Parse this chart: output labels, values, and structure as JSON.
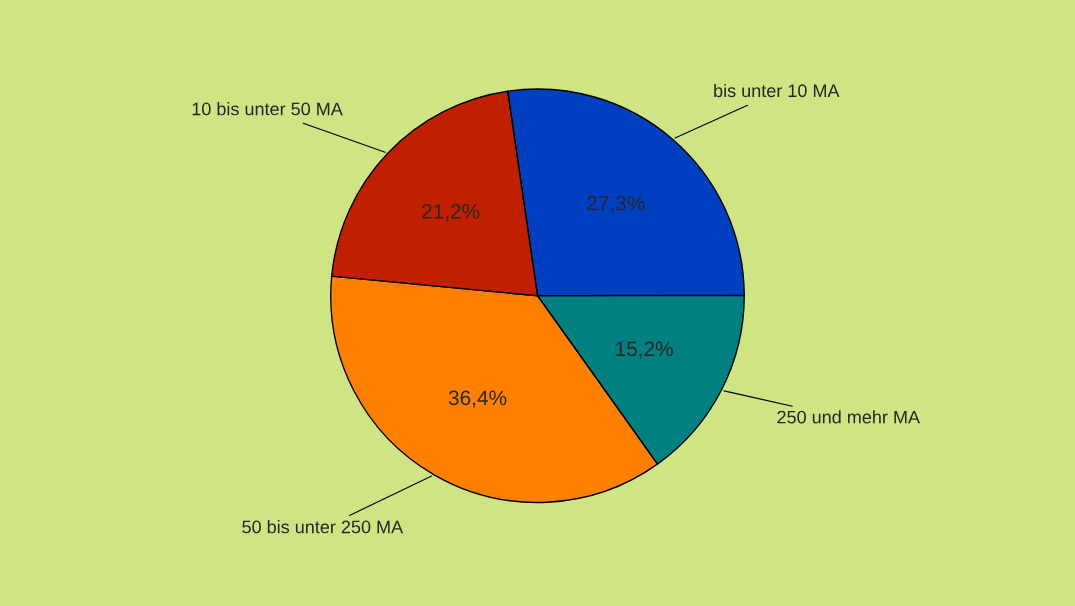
{
  "chart_data": {
    "type": "pie",
    "categories": [
      "bis unter 10 MA",
      "250 und mehr MA",
      "50 bis unter 250 MA",
      "10 bis unter 50 MA"
    ],
    "values": [
      27.3,
      15.2,
      36.4,
      21.2
    ],
    "colors": [
      "#0040c0",
      "#008080",
      "#ff8000",
      "#c02000"
    ],
    "value_labels": [
      "27,3%",
      "15,2%",
      "36,4%",
      "21,2%"
    ]
  }
}
